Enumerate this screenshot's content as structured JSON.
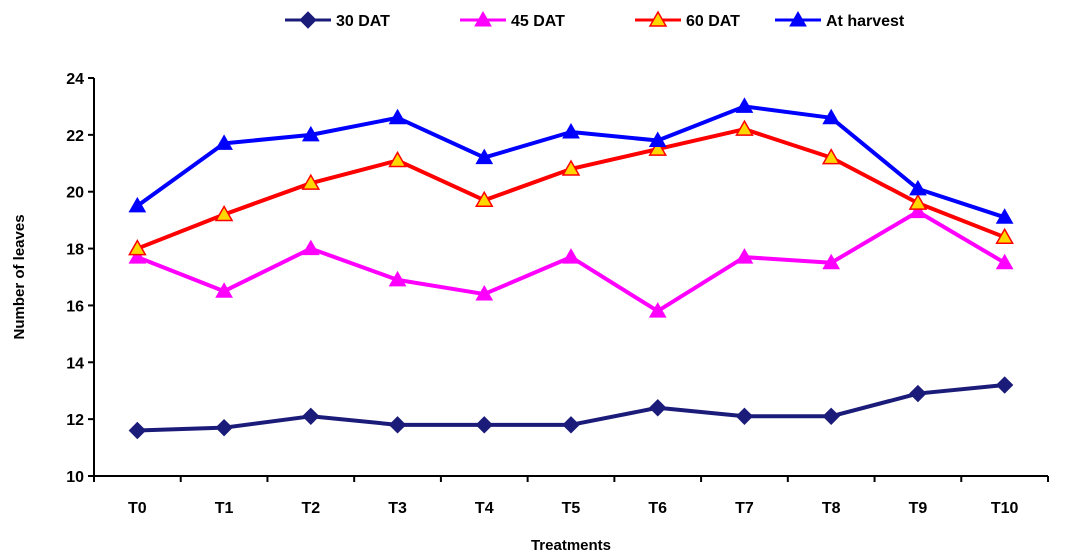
{
  "chart_data": {
    "type": "line",
    "title": "",
    "xlabel": "Treatments",
    "ylabel": "Number of leaves",
    "ylim": [
      10,
      24
    ],
    "yticks": [
      10,
      12,
      14,
      16,
      18,
      20,
      22,
      24
    ],
    "categories": [
      "T0",
      "T1",
      "T2",
      "T3",
      "T4",
      "T5",
      "T6",
      "T7",
      "T8",
      "T9",
      "T10"
    ],
    "grid": false,
    "legend_position": "top-center",
    "series": [
      {
        "name": "30 DAT",
        "color": "#1B1B7A",
        "marker": "diamond",
        "values": [
          11.6,
          11.7,
          12.1,
          11.8,
          11.8,
          11.8,
          12.4,
          12.1,
          12.1,
          12.9,
          13.2
        ]
      },
      {
        "name": "45 DAT",
        "color": "#FF00FF",
        "marker": "triangle",
        "values": [
          17.7,
          16.5,
          18.0,
          16.9,
          16.4,
          17.7,
          15.8,
          17.7,
          17.5,
          19.3,
          17.5
        ]
      },
      {
        "name": "60 DAT",
        "color": "#FF0000",
        "marker": "triangle",
        "marker_fill": "#FFD700",
        "values": [
          18.0,
          19.2,
          20.3,
          21.1,
          19.7,
          20.8,
          21.5,
          22.2,
          21.2,
          19.6,
          18.4
        ]
      },
      {
        "name": "At harvest",
        "color": "#0000FF",
        "marker": "triangle",
        "values": [
          19.5,
          21.7,
          22.0,
          22.6,
          21.2,
          22.1,
          21.8,
          23.0,
          22.6,
          20.1,
          19.1
        ]
      }
    ]
  }
}
